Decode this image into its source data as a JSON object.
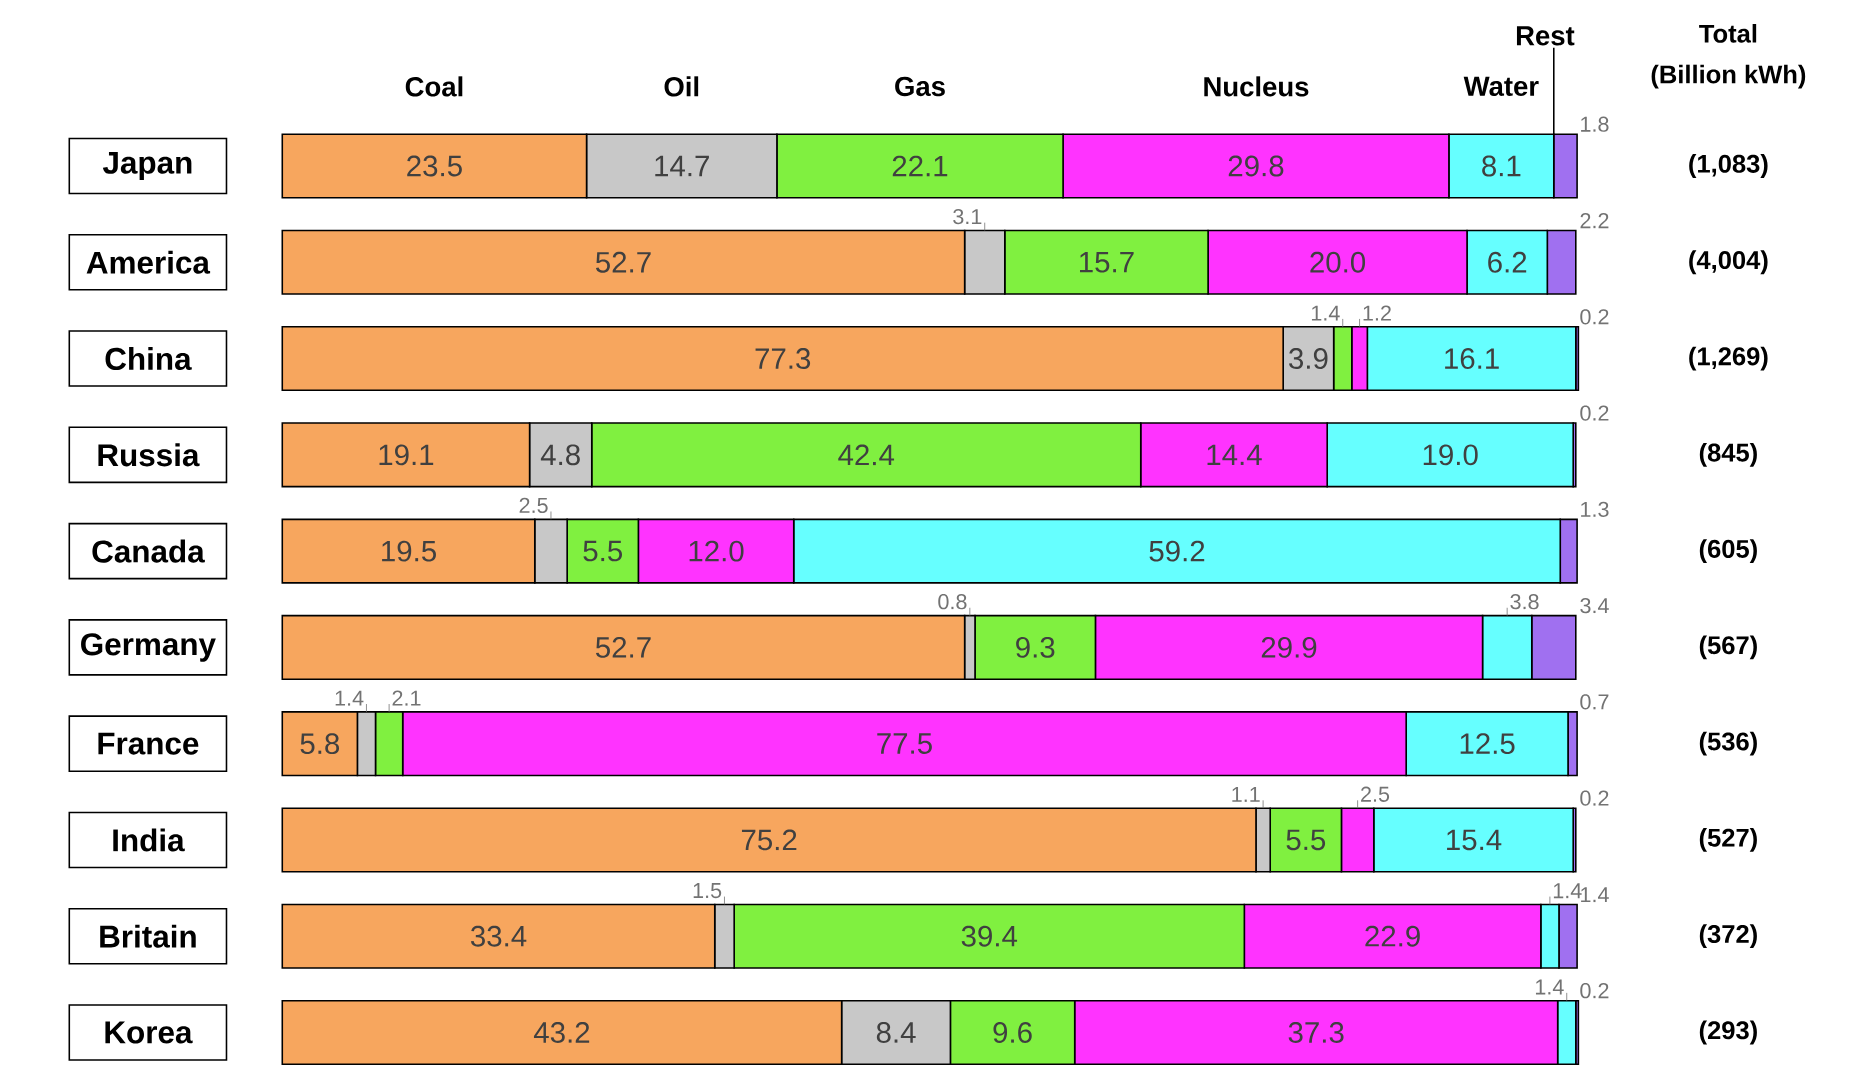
{
  "chart_data": {
    "type": "bar",
    "orientation": "horizontal",
    "stacked": true,
    "tick_labels": "y",
    "xlim": [
      0,
      100
    ],
    "categories": [
      "Japan",
      "America",
      "China",
      "Russia",
      "Canada",
      "Germany",
      "France",
      "India",
      "Britain",
      "Korea"
    ],
    "series": [
      {
        "name": "Coal",
        "color": "#f7a65e",
        "values": [
          23.5,
          52.7,
          77.3,
          19.1,
          19.5,
          52.7,
          5.8,
          75.2,
          33.4,
          43.2
        ],
        "value_labels": [
          "23.5",
          "52.7",
          "77.3",
          "19.1",
          "19.5",
          "52.7",
          "5.8",
          "75.2",
          "33.4",
          "43.2"
        ]
      },
      {
        "name": "Oil",
        "color": "#c8c8c8",
        "values": [
          14.7,
          3.1,
          3.9,
          4.8,
          2.5,
          0.8,
          1.4,
          1.1,
          1.5,
          8.4
        ],
        "value_labels": [
          "14.7",
          "3.1",
          "3.9",
          "4.8",
          "2.5",
          "0.8",
          "1.4",
          "1.1",
          "1.5",
          "8.4"
        ]
      },
      {
        "name": "Gas",
        "color": "#80f040",
        "values": [
          22.1,
          15.7,
          1.4,
          42.4,
          5.5,
          9.3,
          2.1,
          5.5,
          39.4,
          9.6
        ],
        "value_labels": [
          "22.1",
          "15.7",
          "1.4",
          "42.4",
          "5.5",
          "9.3",
          "2.1",
          "5.5",
          "39.4",
          "9.6"
        ]
      },
      {
        "name": "Nucleus",
        "color": "#ff33ff",
        "values": [
          29.8,
          20.0,
          1.2,
          14.4,
          12.0,
          29.9,
          77.5,
          2.5,
          22.9,
          37.3
        ],
        "value_labels": [
          "29.8",
          "20.0",
          "1.2",
          "14.4",
          "12.0",
          "29.9",
          "77.5",
          "2.5",
          "22.9",
          "37.3"
        ]
      },
      {
        "name": "Water",
        "color": "#66ffff",
        "values": [
          8.1,
          6.2,
          16.1,
          19.0,
          59.2,
          3.8,
          12.5,
          15.4,
          1.4,
          1.4
        ],
        "value_labels": [
          "8.1",
          "6.2",
          "16.1",
          "19.0",
          "59.2",
          "3.8",
          "12.5",
          "15.4",
          "1.4",
          "1.4"
        ]
      },
      {
        "name": "Rest",
        "color": "#a070f0",
        "values": [
          1.8,
          2.2,
          0.2,
          0.2,
          1.3,
          3.4,
          0.7,
          0.2,
          1.4,
          0.2
        ],
        "value_labels": [
          "1.8",
          "2.2",
          "0.2",
          "0.2",
          "1.3",
          "3.4",
          "0.7",
          "0.2",
          "1.4",
          "0.2"
        ]
      }
    ],
    "annotations": [
      "Total",
      "(Billion kWh)",
      "(1,083)",
      "(4,004)",
      "(1,269)",
      "(845)",
      "(605)",
      "(567)",
      "(536)",
      "(527)",
      "(372)",
      "(293)"
    ]
  }
}
